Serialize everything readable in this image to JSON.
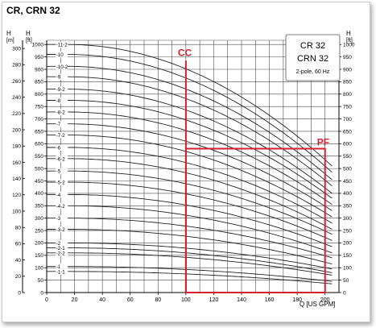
{
  "page_title": "CR, CRN 32",
  "colors": {
    "curve": "#222222",
    "grid": "#4a4a4a",
    "overlay": "#d6202e",
    "axis": "#000000"
  },
  "chart_data": {
    "type": "line",
    "title_lines": [
      "CR 32",
      "CRN 32",
      "2-pole, 60 Hz"
    ],
    "xlabel": "Q [US GPM]",
    "y_left_label": "H",
    "y_left_unit": "[m]",
    "y_ft_label": "H",
    "y_ft_unit": "[ft]",
    "y_right_label": "H",
    "y_right_unit": "[ft]",
    "xlim": [
      0,
      210
    ],
    "ylim_m": [
      0,
      310
    ],
    "ylim_ft": [
      0,
      1017
    ],
    "grid": true,
    "x_ticks": [
      0,
      20,
      40,
      60,
      80,
      100,
      120,
      140,
      160,
      180,
      200
    ],
    "y_ticks_m": [
      0,
      20,
      40,
      60,
      80,
      100,
      120,
      140,
      160,
      180,
      200,
      220,
      240,
      260,
      280,
      300
    ],
    "y_ticks_ft": [
      0,
      50,
      100,
      150,
      200,
      250,
      300,
      350,
      400,
      450,
      500,
      550,
      600,
      650,
      700,
      750,
      800,
      850,
      900,
      950,
      1000
    ],
    "y_ticks_ft_right": [
      0,
      50,
      100,
      150,
      200,
      250,
      300,
      350,
      400,
      450,
      500,
      550,
      600,
      650,
      700,
      750,
      800,
      850,
      900,
      950,
      1000
    ],
    "series": [
      {
        "name": "-11-2",
        "shutoff_ft": 1000,
        "end_ft": 510
      },
      {
        "name": "-10",
        "shutoff_ft": 960,
        "end_ft": 485
      },
      {
        "name": "-10-2",
        "shutoff_ft": 912,
        "end_ft": 455
      },
      {
        "name": "-9",
        "shutoff_ft": 870,
        "end_ft": 430
      },
      {
        "name": "-9-2",
        "shutoff_ft": 820,
        "end_ft": 400
      },
      {
        "name": "-8",
        "shutoff_ft": 775,
        "end_ft": 380
      },
      {
        "name": "-8-2",
        "shutoff_ft": 728,
        "end_ft": 355
      },
      {
        "name": "-7",
        "shutoff_ft": 680,
        "end_ft": 330
      },
      {
        "name": "-7-2",
        "shutoff_ft": 635,
        "end_ft": 305
      },
      {
        "name": "-6",
        "shutoff_ft": 585,
        "end_ft": 280
      },
      {
        "name": "-6-2",
        "shutoff_ft": 540,
        "end_ft": 255
      },
      {
        "name": "-5",
        "shutoff_ft": 490,
        "end_ft": 235
      },
      {
        "name": "-5-2",
        "shutoff_ft": 445,
        "end_ft": 210
      },
      {
        "name": "-4",
        "shutoff_ft": 395,
        "end_ft": 185
      },
      {
        "name": "-4-2",
        "shutoff_ft": 350,
        "end_ft": 160
      },
      {
        "name": "-3",
        "shutoff_ft": 300,
        "end_ft": 140
      },
      {
        "name": "-3-2",
        "shutoff_ft": 255,
        "end_ft": 115
      },
      {
        "name": "-2",
        "shutoff_ft": 200,
        "end_ft": 95
      },
      {
        "name": "-2-1",
        "shutoff_ft": 180,
        "end_ft": 80
      },
      {
        "name": "-2-2",
        "shutoff_ft": 160,
        "end_ft": 70
      },
      {
        "name": "-1",
        "shutoff_ft": 105,
        "end_ft": 45
      },
      {
        "name": "-1-1",
        "shutoff_ft": 85,
        "end_ft": 35
      }
    ],
    "curve_end_x": 205,
    "annotations": [
      {
        "label": "CC",
        "x": 100,
        "y_ft": 940
      },
      {
        "label": "PF",
        "x": 200,
        "y_ft": 580
      }
    ],
    "overlay_lines": [
      {
        "name": "cc-line",
        "points": [
          [
            100,
            935
          ],
          [
            100,
            0
          ]
        ]
      },
      {
        "name": "pf-rectangle",
        "points": [
          [
            100,
            580
          ],
          [
            200,
            580
          ],
          [
            200,
            0
          ],
          [
            100,
            0
          ],
          [
            100,
            580
          ]
        ]
      }
    ]
  }
}
